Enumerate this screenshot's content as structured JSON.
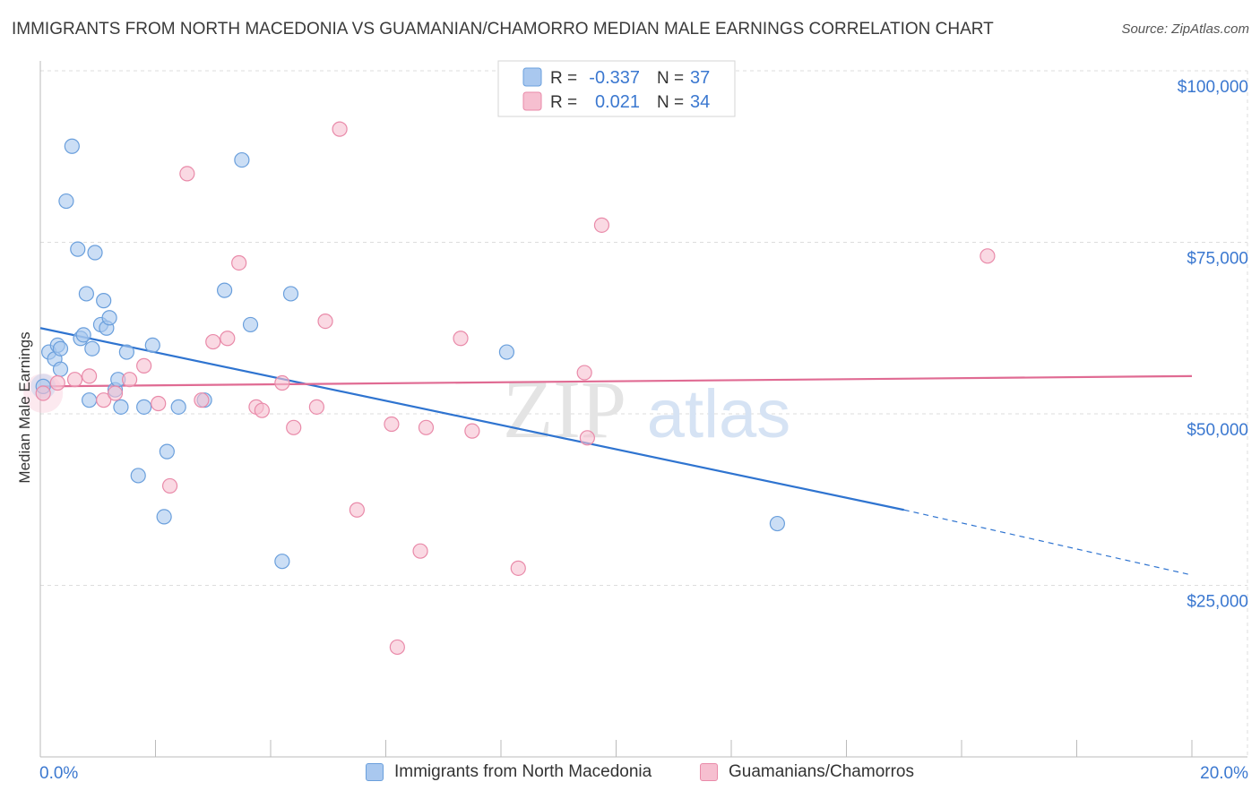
{
  "title": "IMMIGRANTS FROM NORTH MACEDONIA VS GUAMANIAN/CHAMORRO MEDIAN MALE EARNINGS CORRELATION CHART",
  "source": "Source: ZipAtlas.com",
  "watermark": {
    "zip": "ZIP",
    "atlas": "atlas"
  },
  "colors": {
    "blue_fill": "#a9c8ef",
    "blue_stroke": "#6a9fdc",
    "blue_line": "#2f74d0",
    "pink_fill": "#f6bfd0",
    "pink_stroke": "#e98aa9",
    "pink_line": "#e06b93",
    "axis_text": "#3b78d0",
    "grid": "#dddddd"
  },
  "chart_data": {
    "type": "scatter",
    "title": "IMMIGRANTS FROM NORTH MACEDONIA VS GUAMANIAN/CHAMORRO MEDIAN MALE EARNINGS CORRELATION CHART",
    "xlabel": "",
    "ylabel": "Median Male Earnings",
    "xlim": [
      0,
      20
    ],
    "ylim": [
      0,
      105000
    ],
    "x_tick_labels": [
      "0.0%",
      "20.0%"
    ],
    "y_ticks": [
      25000,
      50000,
      75000,
      100000
    ],
    "y_tick_labels": [
      "$25,000",
      "$50,000",
      "$75,000",
      "$100,000"
    ],
    "legend": [
      {
        "r_label": "R =",
        "r_value": "-0.337",
        "n_label": "N =",
        "n_value": "37"
      },
      {
        "r_label": "R =",
        "r_value": "0.021",
        "n_label": "N =",
        "n_value": "34"
      }
    ],
    "series": [
      {
        "name": "Immigrants from North Macedonia",
        "color": "blue",
        "points": [
          [
            0.05,
            54000
          ],
          [
            0.15,
            59000
          ],
          [
            0.25,
            58000
          ],
          [
            0.3,
            60000
          ],
          [
            0.35,
            56500
          ],
          [
            0.35,
            59500
          ],
          [
            0.45,
            81000
          ],
          [
            0.55,
            89000
          ],
          [
            0.65,
            74000
          ],
          [
            0.7,
            61000
          ],
          [
            0.75,
            61500
          ],
          [
            0.8,
            67500
          ],
          [
            0.85,
            52000
          ],
          [
            0.9,
            59500
          ],
          [
            0.95,
            73500
          ],
          [
            1.05,
            63000
          ],
          [
            1.1,
            66500
          ],
          [
            1.15,
            62500
          ],
          [
            1.2,
            64000
          ],
          [
            1.3,
            53500
          ],
          [
            1.35,
            55000
          ],
          [
            1.4,
            51000
          ],
          [
            1.5,
            59000
          ],
          [
            1.7,
            41000
          ],
          [
            1.8,
            51000
          ],
          [
            1.95,
            60000
          ],
          [
            2.15,
            35000
          ],
          [
            2.2,
            44500
          ],
          [
            2.4,
            51000
          ],
          [
            2.85,
            52000
          ],
          [
            3.2,
            68000
          ],
          [
            3.5,
            87000
          ],
          [
            3.65,
            63000
          ],
          [
            4.2,
            28500
          ],
          [
            4.35,
            67500
          ],
          [
            8.1,
            59000
          ],
          [
            12.8,
            34000
          ]
        ]
      },
      {
        "name": "Guamanians/Chamorros",
        "color": "pink",
        "points": [
          [
            0.05,
            53000
          ],
          [
            0.3,
            54500
          ],
          [
            0.6,
            55000
          ],
          [
            0.85,
            55500
          ],
          [
            1.1,
            52000
          ],
          [
            1.3,
            53000
          ],
          [
            1.55,
            55000
          ],
          [
            1.8,
            57000
          ],
          [
            2.05,
            51500
          ],
          [
            2.25,
            39500
          ],
          [
            2.55,
            85000
          ],
          [
            2.8,
            52000
          ],
          [
            3.0,
            60500
          ],
          [
            3.25,
            61000
          ],
          [
            3.45,
            72000
          ],
          [
            3.75,
            51000
          ],
          [
            3.85,
            50500
          ],
          [
            4.2,
            54500
          ],
          [
            4.4,
            48000
          ],
          [
            4.8,
            51000
          ],
          [
            4.95,
            63500
          ],
          [
            5.2,
            91500
          ],
          [
            5.5,
            36000
          ],
          [
            6.1,
            48500
          ],
          [
            6.2,
            16000
          ],
          [
            6.6,
            30000
          ],
          [
            6.7,
            48000
          ],
          [
            7.3,
            61000
          ],
          [
            7.5,
            47500
          ],
          [
            8.3,
            27500
          ],
          [
            9.45,
            56000
          ],
          [
            9.5,
            46500
          ],
          [
            9.75,
            77500
          ],
          [
            16.45,
            73000
          ]
        ]
      }
    ],
    "trendlines": [
      {
        "series": "Immigrants from North Macedonia",
        "x0": 0,
        "y0": 62500,
        "x1": 15.0,
        "y1": 36000,
        "dashed_to_x": 20,
        "dashed_to_y": 26500
      },
      {
        "series": "Guamanians/Chamorros",
        "x0": 0,
        "y0": 54000,
        "x1": 20,
        "y1": 55500
      }
    ]
  }
}
